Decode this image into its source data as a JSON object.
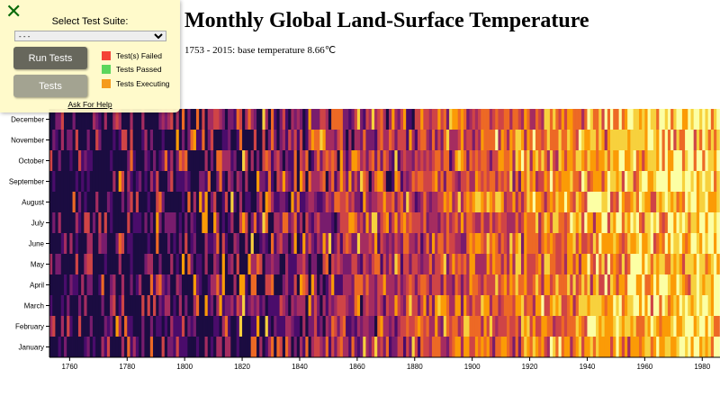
{
  "chart_data": {
    "type": "heatmap",
    "title": "Monthly Global Land-Surface Temperature",
    "subtitle": "1753 - 2015: base temperature 8.66℃",
    "base_temperature": 8.66,
    "x_range": [
      1753,
      1985
    ],
    "x_ticks": [
      "1760",
      "1780",
      "1800",
      "1820",
      "1840",
      "1860",
      "1880",
      "1900",
      "1920",
      "1940",
      "1960",
      "1980"
    ],
    "y_ticks": [
      "January",
      "February",
      "March",
      "April",
      "May",
      "June",
      "July",
      "August",
      "September",
      "October",
      "November",
      "December"
    ],
    "color_scale": [
      "#1b0c41",
      "#4a0c6b",
      "#781c6d",
      "#a52c60",
      "#cf4446",
      "#ed6925",
      "#fb9b06",
      "#f7d13d",
      "#fcffa4"
    ]
  },
  "test_panel": {
    "close_icon": "close-x-icon",
    "select_label": "Select Test Suite:",
    "select_value": "- - -",
    "run_button": "Run Tests",
    "tests_button": "Tests",
    "legend": [
      {
        "label": "Test(s) Failed",
        "color": "#f44336"
      },
      {
        "label": "Tests Passed",
        "color": "#5cd65c"
      },
      {
        "label": "Tests Executing",
        "color": "#f59b1d"
      }
    ],
    "help_link": "Ask For Help"
  }
}
